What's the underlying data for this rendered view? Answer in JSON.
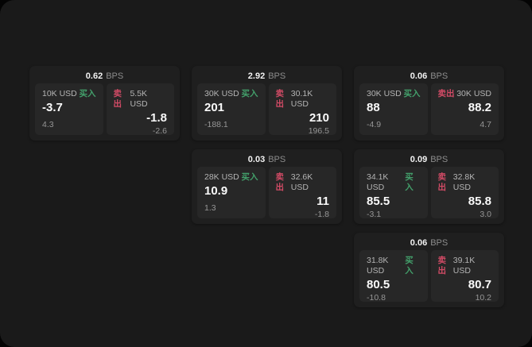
{
  "page": {
    "bps_unit": "BPS",
    "buy_label": "买入",
    "sell_label": "卖出",
    "colors": {
      "buy_accent": "#43a06b",
      "sell_accent": "#d24b66",
      "page_bg": "#1a1a1a",
      "card_bg": "#1f1f1f",
      "panel_bg": "#272727"
    }
  },
  "cards": [
    {
      "bps": "0.62",
      "col": 0,
      "row": 0,
      "buy": {
        "size": "10K USD",
        "value": "-3.7",
        "sub": "4.3"
      },
      "sell": {
        "size": "5.5K USD",
        "value": "-1.8",
        "sub": "-2.6"
      }
    },
    {
      "bps": "2.92",
      "col": 1,
      "row": 0,
      "buy": {
        "size": "30K USD",
        "value": "201",
        "sub": "-188.1"
      },
      "sell": {
        "size": "30.1K USD",
        "value": "210",
        "sub": "196.5"
      }
    },
    {
      "bps": "0.06",
      "col": 2,
      "row": 0,
      "buy": {
        "size": "30K USD",
        "value": "88",
        "sub": "-4.9"
      },
      "sell": {
        "size": "30K USD",
        "value": "88.2",
        "sub": "4.7"
      }
    },
    {
      "bps": "0.03",
      "col": 1,
      "row": 1,
      "buy": {
        "size": "28K USD",
        "value": "10.9",
        "sub": "1.3"
      },
      "sell": {
        "size": "32.6K USD",
        "value": "11",
        "sub": "-1.8"
      }
    },
    {
      "bps": "0.09",
      "col": 2,
      "row": 1,
      "buy": {
        "size": "34.1K USD",
        "value": "85.5",
        "sub": "-3.1"
      },
      "sell": {
        "size": "32.8K USD",
        "value": "85.8",
        "sub": "3.0"
      }
    },
    {
      "bps": "0.06",
      "col": 2,
      "row": 2,
      "buy": {
        "size": "31.8K USD",
        "value": "80.5",
        "sub": "-10.8"
      },
      "sell": {
        "size": "39.1K USD",
        "value": "80.7",
        "sub": "10.2"
      }
    }
  ]
}
